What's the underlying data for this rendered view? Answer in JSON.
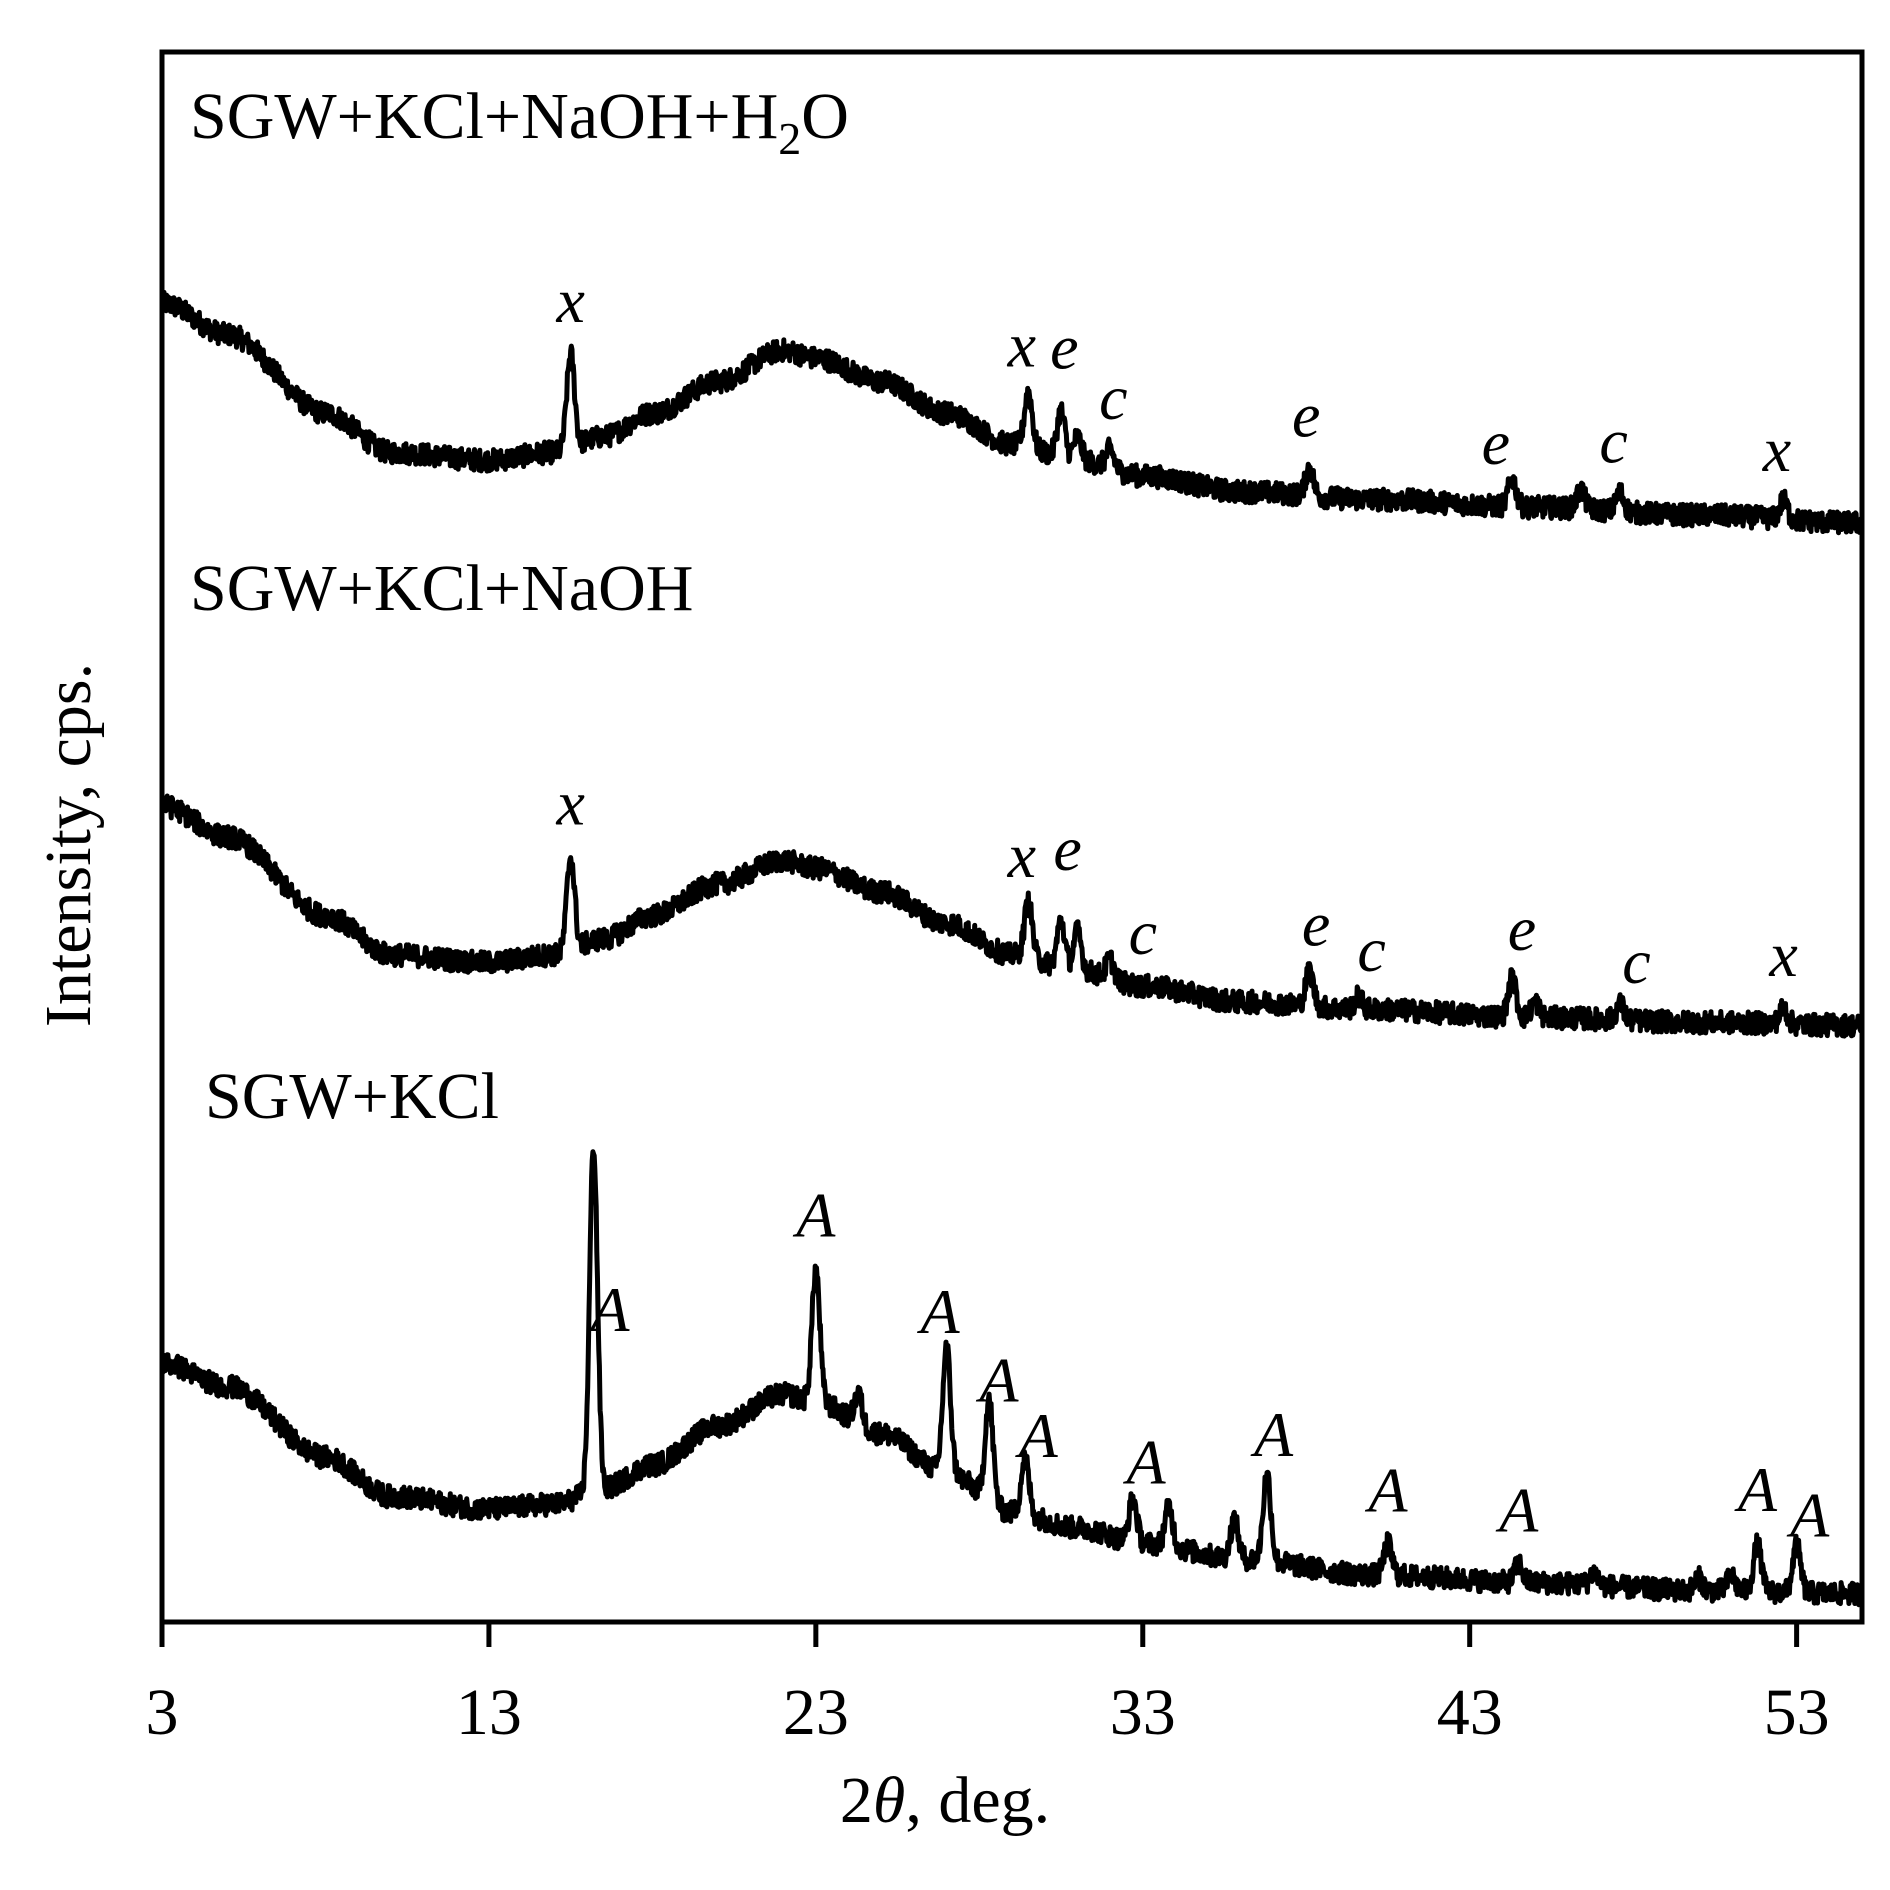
{
  "chart_data": {
    "type": "line",
    "title": "",
    "xlabel_prefix": "2",
    "xlabel_symbol": "θ",
    "xlabel_suffix": ", deg.",
    "ylabel": "Intensity, cps.",
    "xlim": [
      3,
      55
    ],
    "ylim": [
      0,
      1
    ],
    "xticks": [
      3,
      13,
      23,
      33,
      43,
      53
    ],
    "xtick_labels": [
      "3",
      "13",
      "23",
      "33",
      "43",
      "53"
    ],
    "grid": false,
    "color": "#000000",
    "series": [
      {
        "name": "SGW+KCl+NaOH+H2O",
        "label_main": "SGW+KCl+NaOH+H",
        "label_sub": "2",
        "label_end": "O",
        "points": [
          [
            3,
            0.84
          ],
          [
            5,
            0.82
          ],
          [
            8,
            0.77
          ],
          [
            10,
            0.745
          ],
          [
            13,
            0.74
          ],
          [
            15,
            0.745
          ],
          [
            16.5,
            0.755
          ],
          [
            18,
            0.77
          ],
          [
            20,
            0.79
          ],
          [
            22,
            0.81
          ],
          [
            23,
            0.805
          ],
          [
            25,
            0.79
          ],
          [
            27,
            0.77
          ],
          [
            29,
            0.75
          ],
          [
            31,
            0.74
          ],
          [
            33,
            0.73
          ],
          [
            36,
            0.72
          ],
          [
            40,
            0.715
          ],
          [
            45,
            0.71
          ],
          [
            50,
            0.705
          ],
          [
            55,
            0.7
          ]
        ],
        "peaks": [
          [
            15.5,
            0.06
          ],
          [
            29.5,
            0.035
          ],
          [
            30.5,
            0.03
          ],
          [
            31.0,
            0.015
          ],
          [
            32.0,
            0.012
          ],
          [
            38.1,
            0.018
          ],
          [
            44.3,
            0.018
          ],
          [
            46.4,
            0.012
          ],
          [
            47.6,
            0.012
          ],
          [
            52.6,
            0.012
          ]
        ],
        "annotations": [
          {
            "x": 15.5,
            "text": "x"
          },
          {
            "x": 29.3,
            "text": "x"
          },
          {
            "x": 30.6,
            "text": "e"
          },
          {
            "x": 32.1,
            "text": "c"
          },
          {
            "x": 38.0,
            "text": "e"
          },
          {
            "x": 43.8,
            "text": "e"
          },
          {
            "x": 47.4,
            "text": "c"
          },
          {
            "x": 52.4,
            "text": "x"
          }
        ]
      },
      {
        "name": "SGW+KCl+NaOH",
        "label_main": "SGW+KCl+NaOH",
        "label_sub": "",
        "label_end": "",
        "points": [
          [
            3,
            0.52
          ],
          [
            5,
            0.5
          ],
          [
            8,
            0.45
          ],
          [
            10,
            0.425
          ],
          [
            13,
            0.42
          ],
          [
            15,
            0.425
          ],
          [
            16.5,
            0.435
          ],
          [
            18,
            0.45
          ],
          [
            20,
            0.47
          ],
          [
            22,
            0.485
          ],
          [
            23,
            0.48
          ],
          [
            25,
            0.465
          ],
          [
            27,
            0.445
          ],
          [
            29,
            0.425
          ],
          [
            31,
            0.415
          ],
          [
            33,
            0.405
          ],
          [
            36,
            0.395
          ],
          [
            40,
            0.39
          ],
          [
            45,
            0.385
          ],
          [
            50,
            0.382
          ],
          [
            55,
            0.38
          ]
        ],
        "peaks": [
          [
            15.5,
            0.06
          ],
          [
            29.5,
            0.035
          ],
          [
            30.5,
            0.03
          ],
          [
            31.0,
            0.025
          ],
          [
            32.0,
            0.012
          ],
          [
            38.1,
            0.022
          ],
          [
            39.6,
            0.008
          ],
          [
            44.3,
            0.025
          ],
          [
            45.0,
            0.01
          ],
          [
            47.6,
            0.01
          ],
          [
            52.6,
            0.01
          ]
        ],
        "annotations": [
          {
            "x": 15.5,
            "text": "x"
          },
          {
            "x": 29.3,
            "text": "x"
          },
          {
            "x": 30.7,
            "text": "e"
          },
          {
            "x": 33.0,
            "text": "c"
          },
          {
            "x": 38.3,
            "text": "e"
          },
          {
            "x": 40.0,
            "text": "c"
          },
          {
            "x": 44.6,
            "text": "e"
          },
          {
            "x": 48.1,
            "text": "c"
          },
          {
            "x": 52.6,
            "text": "x"
          }
        ]
      },
      {
        "name": "SGW+KCl",
        "label_main": "SGW+KCl",
        "label_sub": "",
        "label_end": "",
        "points": [
          [
            3,
            0.165
          ],
          [
            5,
            0.15
          ],
          [
            8,
            0.105
          ],
          [
            10,
            0.08
          ],
          [
            13,
            0.072
          ],
          [
            15,
            0.075
          ],
          [
            16.5,
            0.085
          ],
          [
            18,
            0.1
          ],
          [
            20,
            0.125
          ],
          [
            22,
            0.145
          ],
          [
            23,
            0.14
          ],
          [
            25,
            0.12
          ],
          [
            27,
            0.095
          ],
          [
            29,
            0.07
          ],
          [
            31,
            0.06
          ],
          [
            33,
            0.05
          ],
          [
            36,
            0.04
          ],
          [
            40,
            0.03
          ],
          [
            45,
            0.025
          ],
          [
            50,
            0.02
          ],
          [
            55,
            0.018
          ]
        ],
        "peaks": [
          [
            16.2,
            0.22
          ],
          [
            23.0,
            0.085
          ],
          [
            24.3,
            0.02
          ],
          [
            27.0,
            0.08
          ],
          [
            28.3,
            0.065
          ],
          [
            29.4,
            0.035
          ],
          [
            32.7,
            0.028
          ],
          [
            33.8,
            0.025
          ],
          [
            35.8,
            0.025
          ],
          [
            36.8,
            0.055
          ],
          [
            40.5,
            0.02
          ],
          [
            44.5,
            0.012
          ],
          [
            46.8,
            0.008
          ],
          [
            50.0,
            0.008
          ],
          [
            51.0,
            0.01
          ],
          [
            51.8,
            0.03
          ],
          [
            53.0,
            0.03
          ]
        ],
        "annotations": [
          {
            "x": 16.7,
            "text": "A"
          },
          {
            "x": 23.0,
            "text": "A"
          },
          {
            "x": 26.8,
            "text": "A"
          },
          {
            "x": 28.6,
            "text": "A"
          },
          {
            "x": 29.8,
            "text": "A"
          },
          {
            "x": 33.1,
            "text": "A"
          },
          {
            "x": 37.0,
            "text": "A"
          },
          {
            "x": 40.5,
            "text": "A"
          },
          {
            "x": 44.5,
            "text": "A"
          },
          {
            "x": 51.8,
            "text": "A"
          },
          {
            "x": 53.4,
            "text": "A"
          }
        ]
      }
    ]
  }
}
